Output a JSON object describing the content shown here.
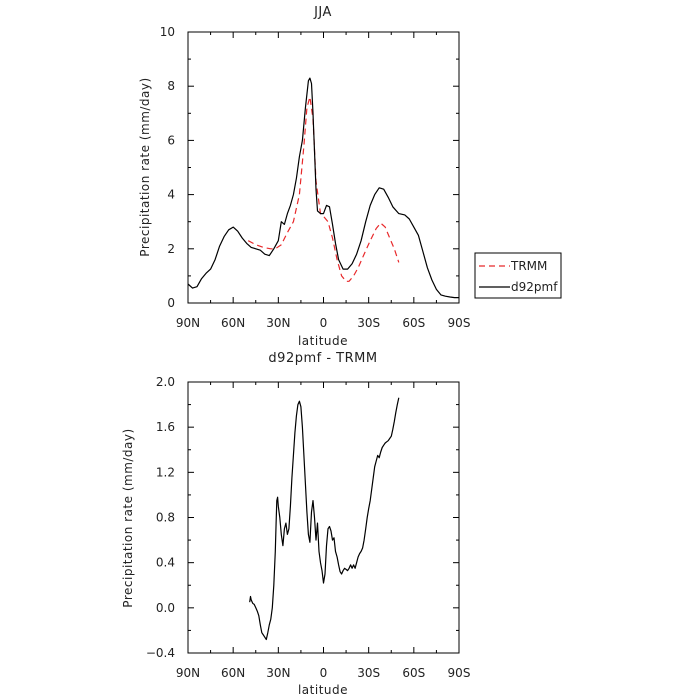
{
  "chart_data": [
    {
      "type": "line",
      "title": "JJA",
      "xlabel": "latitude",
      "ylabel": "Precipitation rate (mm/day)",
      "xlim": [
        90,
        -90
      ],
      "ylim": [
        0,
        10
      ],
      "xticks": [
        90,
        60,
        30,
        0,
        -30,
        -60,
        -90
      ],
      "xtick_labels": [
        "90N",
        "60N",
        "30N",
        "0",
        "30S",
        "60S",
        "90S"
      ],
      "yticks": [
        0,
        2,
        4,
        6,
        8,
        10
      ],
      "ytick_labels": [
        "0",
        "2",
        "4",
        "6",
        "8",
        "10"
      ],
      "grid": false,
      "legend_position": "right",
      "series": [
        {
          "name": "TRMM",
          "color": "#e8292b",
          "style": "dashed",
          "x": [
            50,
            45,
            40,
            35,
            32,
            28,
            24,
            20,
            16,
            13,
            11,
            9,
            7,
            5,
            2,
            0,
            -3,
            -6,
            -9,
            -12,
            -15,
            -17,
            -20,
            -23,
            -27,
            -31,
            -35,
            -38,
            -41,
            -44,
            -47,
            -50
          ],
          "y": [
            2.3,
            2.15,
            2.05,
            2.0,
            2.0,
            2.15,
            2.6,
            3.0,
            4.0,
            5.8,
            7.2,
            7.6,
            6.8,
            4.5,
            3.3,
            3.2,
            3.0,
            2.4,
            1.6,
            1.0,
            0.8,
            0.8,
            1.0,
            1.3,
            1.8,
            2.3,
            2.75,
            2.95,
            2.8,
            2.4,
            2.0,
            1.5
          ]
        },
        {
          "name": "d92pmf",
          "color": "#000000",
          "style": "solid",
          "x": [
            90,
            87,
            84,
            81,
            78,
            75,
            72,
            69,
            66,
            63,
            60,
            57,
            54,
            51,
            48,
            45,
            42,
            39,
            36,
            33,
            30,
            28,
            26,
            24,
            22,
            20,
            18,
            16,
            14,
            12,
            10,
            9,
            8,
            7,
            6,
            5,
            4,
            2,
            0,
            -2,
            -4,
            -6,
            -8,
            -10,
            -13,
            -16,
            -19,
            -22,
            -25,
            -28,
            -31,
            -34,
            -37,
            -40,
            -43,
            -46,
            -50,
            -54,
            -57,
            -60,
            -63,
            -66,
            -69,
            -72,
            -75,
            -78,
            -81,
            -84,
            -87,
            -90
          ],
          "y": [
            0.7,
            0.55,
            0.6,
            0.9,
            1.1,
            1.25,
            1.6,
            2.1,
            2.45,
            2.7,
            2.8,
            2.65,
            2.4,
            2.2,
            2.05,
            2.0,
            1.95,
            1.8,
            1.75,
            2.0,
            2.3,
            3.0,
            2.9,
            3.3,
            3.6,
            4.0,
            4.6,
            5.4,
            6.0,
            7.2,
            8.2,
            8.3,
            8.1,
            7.0,
            5.6,
            4.2,
            3.4,
            3.3,
            3.3,
            3.6,
            3.55,
            2.9,
            2.2,
            1.6,
            1.25,
            1.25,
            1.45,
            1.8,
            2.3,
            3.0,
            3.6,
            4.0,
            4.25,
            4.2,
            3.9,
            3.55,
            3.3,
            3.25,
            3.1,
            2.8,
            2.5,
            1.9,
            1.3,
            0.85,
            0.5,
            0.3,
            0.25,
            0.22,
            0.2,
            0.2
          ]
        }
      ]
    },
    {
      "type": "line",
      "title": "d92pmf - TRMM",
      "xlabel": "latitude",
      "ylabel": "Precipitation rate (mm/day)",
      "xlim": [
        90,
        -90
      ],
      "ylim": [
        -0.4,
        2.0
      ],
      "xticks": [
        90,
        60,
        30,
        0,
        -30,
        -60,
        -90
      ],
      "xtick_labels": [
        "90N",
        "60N",
        "30N",
        "0",
        "30S",
        "60S",
        "90S"
      ],
      "yticks": [
        -0.4,
        0,
        0.4,
        0.8,
        1.2,
        1.6,
        2.0
      ],
      "ytick_labels": [
        "−0.4",
        "0.0",
        "0.4",
        "0.8",
        "1.2",
        "1.6",
        "2.0"
      ],
      "grid": false,
      "series": [
        {
          "color": "#000000",
          "style": "solid",
          "x": [
            49,
            48.5,
            48,
            47,
            46,
            45,
            44,
            43,
            42,
            41,
            40,
            39,
            38,
            37,
            36,
            35,
            34,
            33,
            32,
            31.5,
            31,
            30.5,
            30,
            29,
            28,
            27,
            26,
            25,
            24,
            23,
            22,
            21,
            20,
            19,
            18,
            17,
            16,
            15,
            14,
            13,
            12,
            11,
            10,
            9,
            8,
            7,
            6,
            5,
            4,
            3,
            2,
            1,
            0,
            -1,
            -2,
            -3,
            -4,
            -5,
            -6,
            -7,
            -8,
            -9,
            -10,
            -11,
            -12,
            -13,
            -14,
            -15,
            -16,
            -17,
            -18,
            -19,
            -20,
            -21,
            -22,
            -23,
            -24,
            -25,
            -26,
            -27,
            -28,
            -29,
            -30,
            -31,
            -32,
            -33,
            -34,
            -35,
            -36,
            -37,
            -38,
            -39,
            -40,
            -41,
            -42,
            -43,
            -44,
            -45,
            -46,
            -47,
            -48,
            -49,
            -50
          ],
          "y": [
            0.05,
            0.1,
            0.07,
            0.04,
            0.03,
            0.0,
            -0.03,
            -0.07,
            -0.15,
            -0.22,
            -0.24,
            -0.26,
            -0.28,
            -0.22,
            -0.15,
            -0.1,
            0.0,
            0.2,
            0.5,
            0.75,
            0.95,
            0.98,
            0.9,
            0.8,
            0.65,
            0.55,
            0.7,
            0.75,
            0.65,
            0.7,
            0.9,
            1.15,
            1.35,
            1.55,
            1.7,
            1.8,
            1.83,
            1.78,
            1.6,
            1.35,
            1.1,
            0.85,
            0.65,
            0.58,
            0.85,
            0.95,
            0.8,
            0.6,
            0.75,
            0.5,
            0.4,
            0.33,
            0.22,
            0.3,
            0.55,
            0.7,
            0.72,
            0.68,
            0.6,
            0.62,
            0.5,
            0.45,
            0.38,
            0.32,
            0.3,
            0.33,
            0.35,
            0.34,
            0.33,
            0.35,
            0.38,
            0.35,
            0.38,
            0.35,
            0.4,
            0.45,
            0.48,
            0.5,
            0.53,
            0.6,
            0.7,
            0.8,
            0.88,
            0.95,
            1.05,
            1.15,
            1.25,
            1.3,
            1.35,
            1.33,
            1.38,
            1.42,
            1.44,
            1.46,
            1.47,
            1.48,
            1.5,
            1.52,
            1.58,
            1.65,
            1.73,
            1.8,
            1.86
          ]
        }
      ]
    }
  ]
}
